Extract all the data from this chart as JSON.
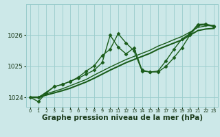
{
  "background_color": "#cce8e8",
  "grid_color": "#99cccc",
  "line_color": "#1a5c1a",
  "xlabel": "Graphe pression niveau de la mer (hPa)",
  "xlabel_fontsize": 7.5,
  "xlim": [
    -0.5,
    23.5
  ],
  "ylim": [
    1023.7,
    1027.0
  ],
  "yticks": [
    1024,
    1025,
    1026
  ],
  "ytick_labels": [
    "1024",
    "1025",
    "1026"
  ],
  "xticks": [
    0,
    1,
    2,
    3,
    4,
    5,
    6,
    7,
    8,
    9,
    10,
    11,
    12,
    13,
    14,
    15,
    16,
    17,
    18,
    19,
    20,
    21,
    22,
    23
  ],
  "series": [
    {
      "x": [
        0,
        1,
        2,
        3,
        4,
        5,
        6,
        7,
        8,
        9,
        10,
        11,
        12,
        13,
        14,
        15,
        16,
        17,
        18,
        19,
        20,
        21,
        22,
        23
      ],
      "y": [
        1024.0,
        1024.0,
        1024.08,
        1024.15,
        1024.22,
        1024.3,
        1024.4,
        1024.5,
        1024.62,
        1024.75,
        1024.88,
        1025.0,
        1025.12,
        1025.22,
        1025.32,
        1025.42,
        1025.55,
        1025.65,
        1025.75,
        1025.85,
        1026.0,
        1026.15,
        1026.2,
        1026.22
      ],
      "marker": null,
      "lw": 1.5
    },
    {
      "x": [
        0,
        1,
        2,
        3,
        4,
        5,
        6,
        7,
        8,
        9,
        10,
        11,
        12,
        13,
        14,
        15,
        16,
        17,
        18,
        19,
        20,
        21,
        22,
        23
      ],
      "y": [
        1024.02,
        1024.02,
        1024.12,
        1024.2,
        1024.28,
        1024.38,
        1024.48,
        1024.58,
        1024.72,
        1024.85,
        1024.98,
        1025.1,
        1025.22,
        1025.32,
        1025.42,
        1025.52,
        1025.65,
        1025.75,
        1025.86,
        1025.96,
        1026.1,
        1026.25,
        1026.3,
        1026.32
      ],
      "marker": null,
      "lw": 1.0
    },
    {
      "x": [
        0,
        1,
        2,
        3,
        4,
        5,
        6,
        7,
        8,
        9,
        10,
        11,
        12,
        13,
        14,
        15,
        16,
        17,
        18,
        19,
        20,
        21,
        22,
        23
      ],
      "y": [
        1024.0,
        1023.87,
        1024.15,
        1024.35,
        1024.42,
        1024.52,
        1024.65,
        1024.85,
        1025.02,
        1025.35,
        1025.55,
        1026.05,
        1025.75,
        1025.5,
        1024.85,
        1024.82,
        1024.82,
        1025.0,
        1025.28,
        1025.6,
        1026.0,
        1026.32,
        1026.33,
        1026.28
      ],
      "marker": "D",
      "lw": 1.0
    },
    {
      "x": [
        1,
        3,
        4,
        5,
        6,
        7,
        8,
        9,
        10,
        11,
        12,
        13,
        14,
        15,
        16,
        17,
        18,
        19,
        20,
        21,
        22,
        23
      ],
      "y": [
        1024.0,
        1024.35,
        1024.42,
        1024.52,
        1024.62,
        1024.75,
        1024.88,
        1025.12,
        1026.0,
        1025.62,
        1025.4,
        1025.6,
        1024.88,
        1024.82,
        1024.85,
        1025.18,
        1025.55,
        1025.88,
        1026.05,
        1026.35,
        1026.36,
        1026.3
      ],
      "marker": "D",
      "lw": 1.0
    }
  ]
}
